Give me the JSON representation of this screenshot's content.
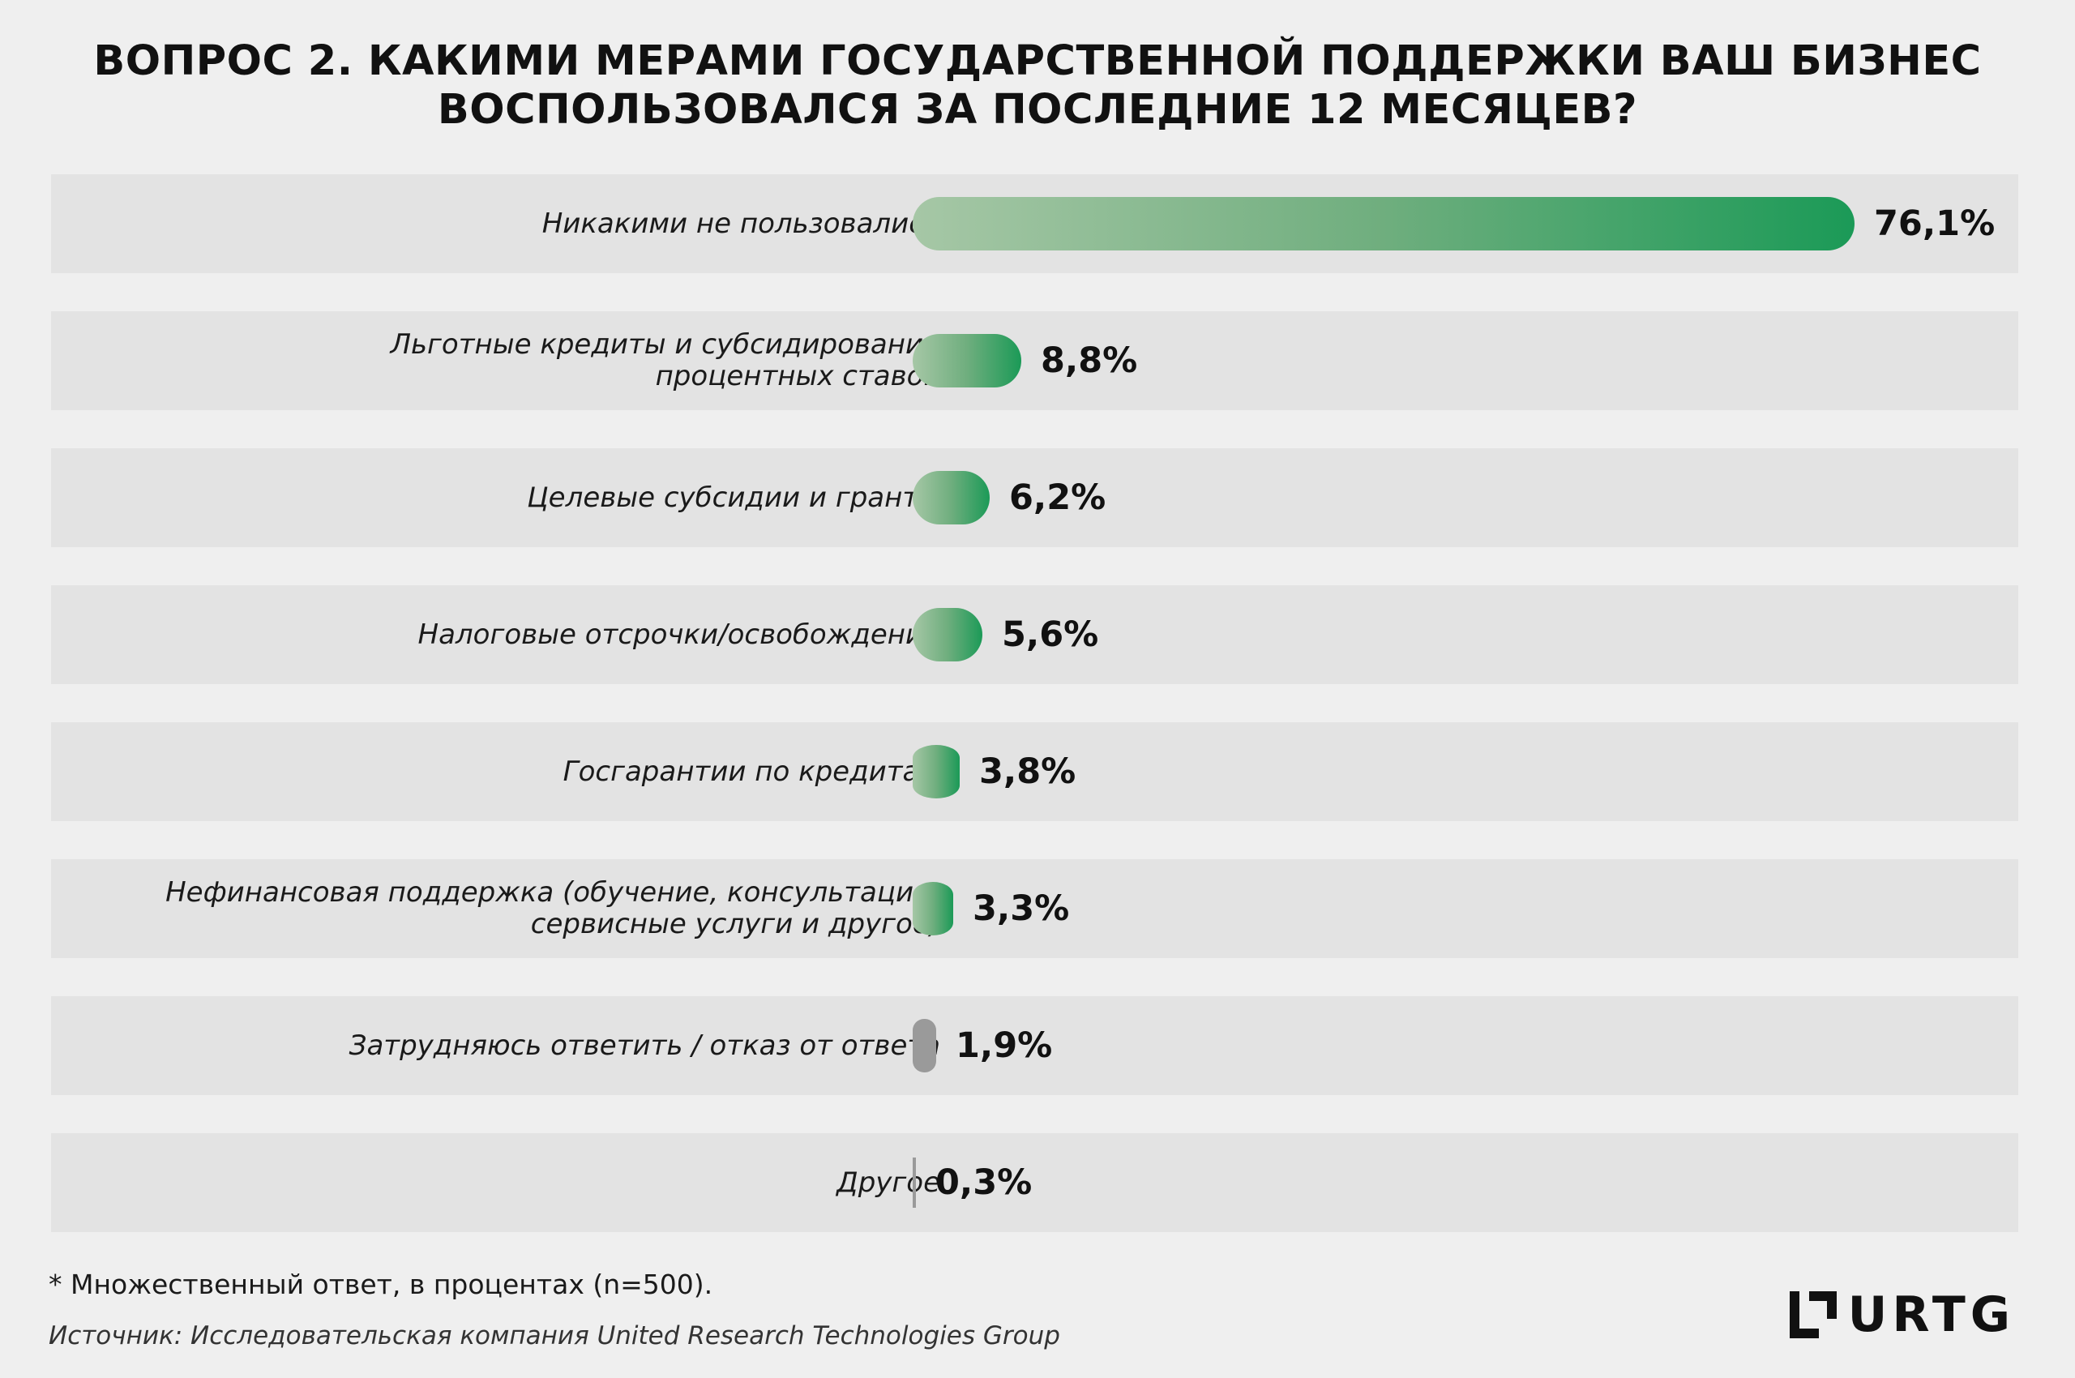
{
  "title": {
    "line1": "ВОПРОС 2. КАКИМИ МЕРАМИ ГОСУДАРСТВЕННОЙ ПОДДЕРЖКИ ВАШ БИЗНЕС",
    "line2": "ВОСПОЛЬЗОВАЛСЯ ЗА ПОСЛЕДНИЕ 12 МЕСЯЦЕВ?"
  },
  "chart_data": {
    "type": "bar",
    "orientation": "horizontal",
    "title": "ВОПРОС 2. КАКИМИ МЕРАМИ ГОСУДАРСТВЕННОЙ ПОДДЕРЖКИ ВАШ БИЗНЕС ВОСПОЛЬЗОВАЛСЯ ЗА ПОСЛЕДНИЕ 12 МЕСЯЦЕВ?",
    "unit": "%",
    "xlim": [
      0,
      76.1
    ],
    "grid": false,
    "legend": "none",
    "bars": [
      {
        "label_lines": [
          "Никакими не пользовались"
        ],
        "value": 76.1,
        "display": "76,1%",
        "color": "green"
      },
      {
        "label_lines": [
          "Льготные кредиты и субсидирование",
          "процентных ставок"
        ],
        "value": 8.8,
        "display": "8,8%",
        "color": "green"
      },
      {
        "label_lines": [
          "Целевые субсидии и гранты"
        ],
        "value": 6.2,
        "display": "6,2%",
        "color": "green"
      },
      {
        "label_lines": [
          "Налоговые отсрочки/освобождение"
        ],
        "value": 5.6,
        "display": "5,6%",
        "color": "green"
      },
      {
        "label_lines": [
          "Госгарантии по кредитам"
        ],
        "value": 3.8,
        "display": "3,8%",
        "color": "green"
      },
      {
        "label_lines": [
          "Нефинансовая поддержка (обучение, консультации,",
          "сервисные услуги и другое)"
        ],
        "value": 3.3,
        "display": "3,3%",
        "color": "green"
      },
      {
        "label_lines": [
          "Затрудняюсь ответить / отказ от ответа"
        ],
        "value": 1.9,
        "display": "1,9%",
        "color": "gray"
      },
      {
        "label_lines": [
          "Другое"
        ],
        "value": 0.3,
        "display": "0,3%",
        "color": "gray"
      }
    ]
  },
  "colors": {
    "bar_gradient_start": "#a6c7a6",
    "bar_gradient_end": "#1b9a57",
    "gray_bar": "#9a9a9a",
    "row_background": "#e3e3e3",
    "page_background": "#efefef"
  },
  "footnote": "* Множественный ответ, в процентах (n=500).",
  "source": "Источник: Исследовательская компания United Research Technologies Group",
  "logo": {
    "icon": "urtg-logo-mark",
    "text": "URTG"
  }
}
